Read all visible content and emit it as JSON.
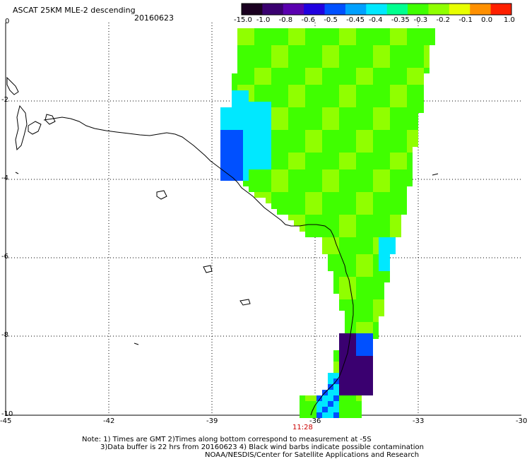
{
  "header": {
    "title": "ASCAT 25KM MLE-2 descending",
    "date": "20160623"
  },
  "colorbar": {
    "labels": [
      "-15.0",
      "-1.0",
      "-0.8",
      "-0.6",
      "-0.5",
      "-0.45",
      "-0.4",
      "-0.35",
      "-0.3",
      "-0.2",
      "-0.1",
      "0.0",
      "1.0"
    ],
    "colors": [
      "#1a0020",
      "#3a0070",
      "#5a00b0",
      "#2000e0",
      "#0050ff",
      "#00a0ff",
      "#00e8ff",
      "#00ff90",
      "#40ff00",
      "#90ff00",
      "#e8ff00",
      "#ff9000",
      "#ff2000"
    ]
  },
  "axes": {
    "x_labels": [
      "-45",
      "-42",
      "-39",
      "-36",
      "-33",
      "-30"
    ],
    "y_labels": [
      "0",
      "-2",
      "-4",
      "-6",
      "-8",
      "-10"
    ]
  },
  "time_label": "11:28",
  "notes": {
    "line1": "Note: 1) Times are GMT 2)Times along bottom correspond to measurement at -5S",
    "line2": "3)Data buffer is 22 hrs from 20160623 4) Black wind barbs indicate possible contamination",
    "line3": "NOAA/NESDIS/Center for Satellite Applications and Research"
  },
  "colors": {
    "green": "#40ff00",
    "lime": "#90ff00",
    "cyan": "#00e8ff",
    "blue": "#0050ff",
    "purple": "#3a0070"
  }
}
